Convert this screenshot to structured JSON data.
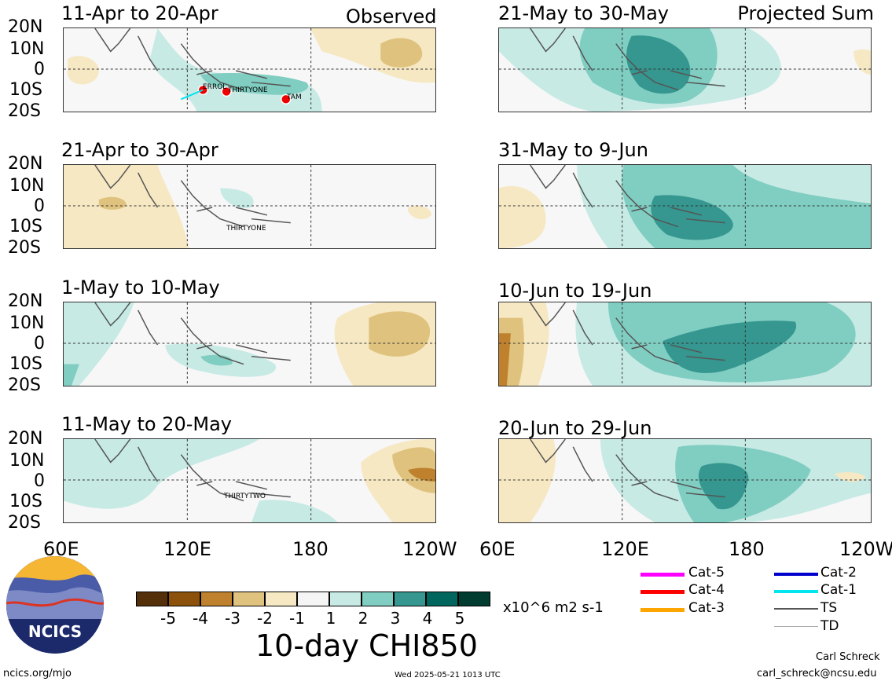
{
  "headers": {
    "left": "Observed",
    "right": "Projected Sum"
  },
  "panels_left": [
    {
      "title": "11-Apr to 20-Apr",
      "storms": [
        "ERROL",
        "THIRTYONE",
        "TAM"
      ]
    },
    {
      "title": "21-Apr to 30-Apr",
      "storms": [
        "THIRTYONE"
      ]
    },
    {
      "title": "1-May to 10-May",
      "storms": []
    },
    {
      "title": "11-May to 20-May",
      "storms": [
        "THIRTYTWO"
      ]
    }
  ],
  "panels_right": [
    {
      "title": "21-May to 30-May"
    },
    {
      "title": "31-May to 9-Jun"
    },
    {
      "title": "10-Jun to 19-Jun"
    },
    {
      "title": "20-Jun to 29-Jun"
    }
  ],
  "lat_labels": [
    "20N",
    "10N",
    "0",
    "10S",
    "20S"
  ],
  "lon_labels": [
    "60E",
    "120E",
    "180",
    "120W"
  ],
  "colorbar": {
    "ticks": [
      "-5",
      "-4",
      "-3",
      "-2",
      "-1",
      "1",
      "2",
      "3",
      "4",
      "5"
    ],
    "colors": [
      "#54300a",
      "#8c510a",
      "#bf812d",
      "#dfc27d",
      "#f6e8c3",
      "#f5f5f5",
      "#c7eae5",
      "#80cdc1",
      "#35978f",
      "#01665e",
      "#003c30"
    ],
    "units": "x10^6 m2 s-1",
    "title": "10-day CHI850"
  },
  "legend": {
    "left": [
      {
        "label": "Cat-5",
        "color": "#ff00ff"
      },
      {
        "label": "Cat-4",
        "color": "#ff0000"
      },
      {
        "label": "Cat-3",
        "color": "#ffa500"
      }
    ],
    "right": [
      {
        "label": "Cat-2",
        "color": "#0000cc"
      },
      {
        "label": "Cat-1",
        "color": "#00e5ee"
      },
      {
        "label": "TS",
        "color": "#555555"
      },
      {
        "label": "TD",
        "color": "#aaaaaa"
      }
    ]
  },
  "logo_text": "NCICS",
  "footer": {
    "left": "ncics.org/mjo",
    "center": "Wed 2025-05-21 1013 UTC",
    "author": "Carl Schreck",
    "email": "carl_schreck@ncsu.edu"
  }
}
